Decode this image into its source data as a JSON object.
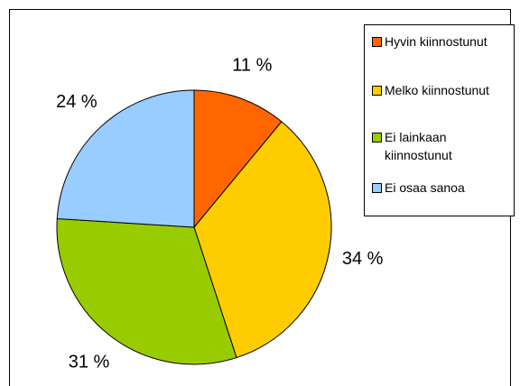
{
  "chart_data": {
    "type": "pie",
    "categories": [
      "Hyvin kiinnostunut",
      "Melko kiinnostunut",
      "Ei lainkaan kiinnostunut",
      "Ei osaa sanoa"
    ],
    "values": [
      11,
      34,
      31,
      24
    ],
    "value_labels": [
      "11 %",
      "34 %",
      "31 %",
      "24 %"
    ],
    "colors": [
      "#FF6600",
      "#FFCC00",
      "#99CC00",
      "#99CCFF"
    ],
    "legend": "right"
  }
}
